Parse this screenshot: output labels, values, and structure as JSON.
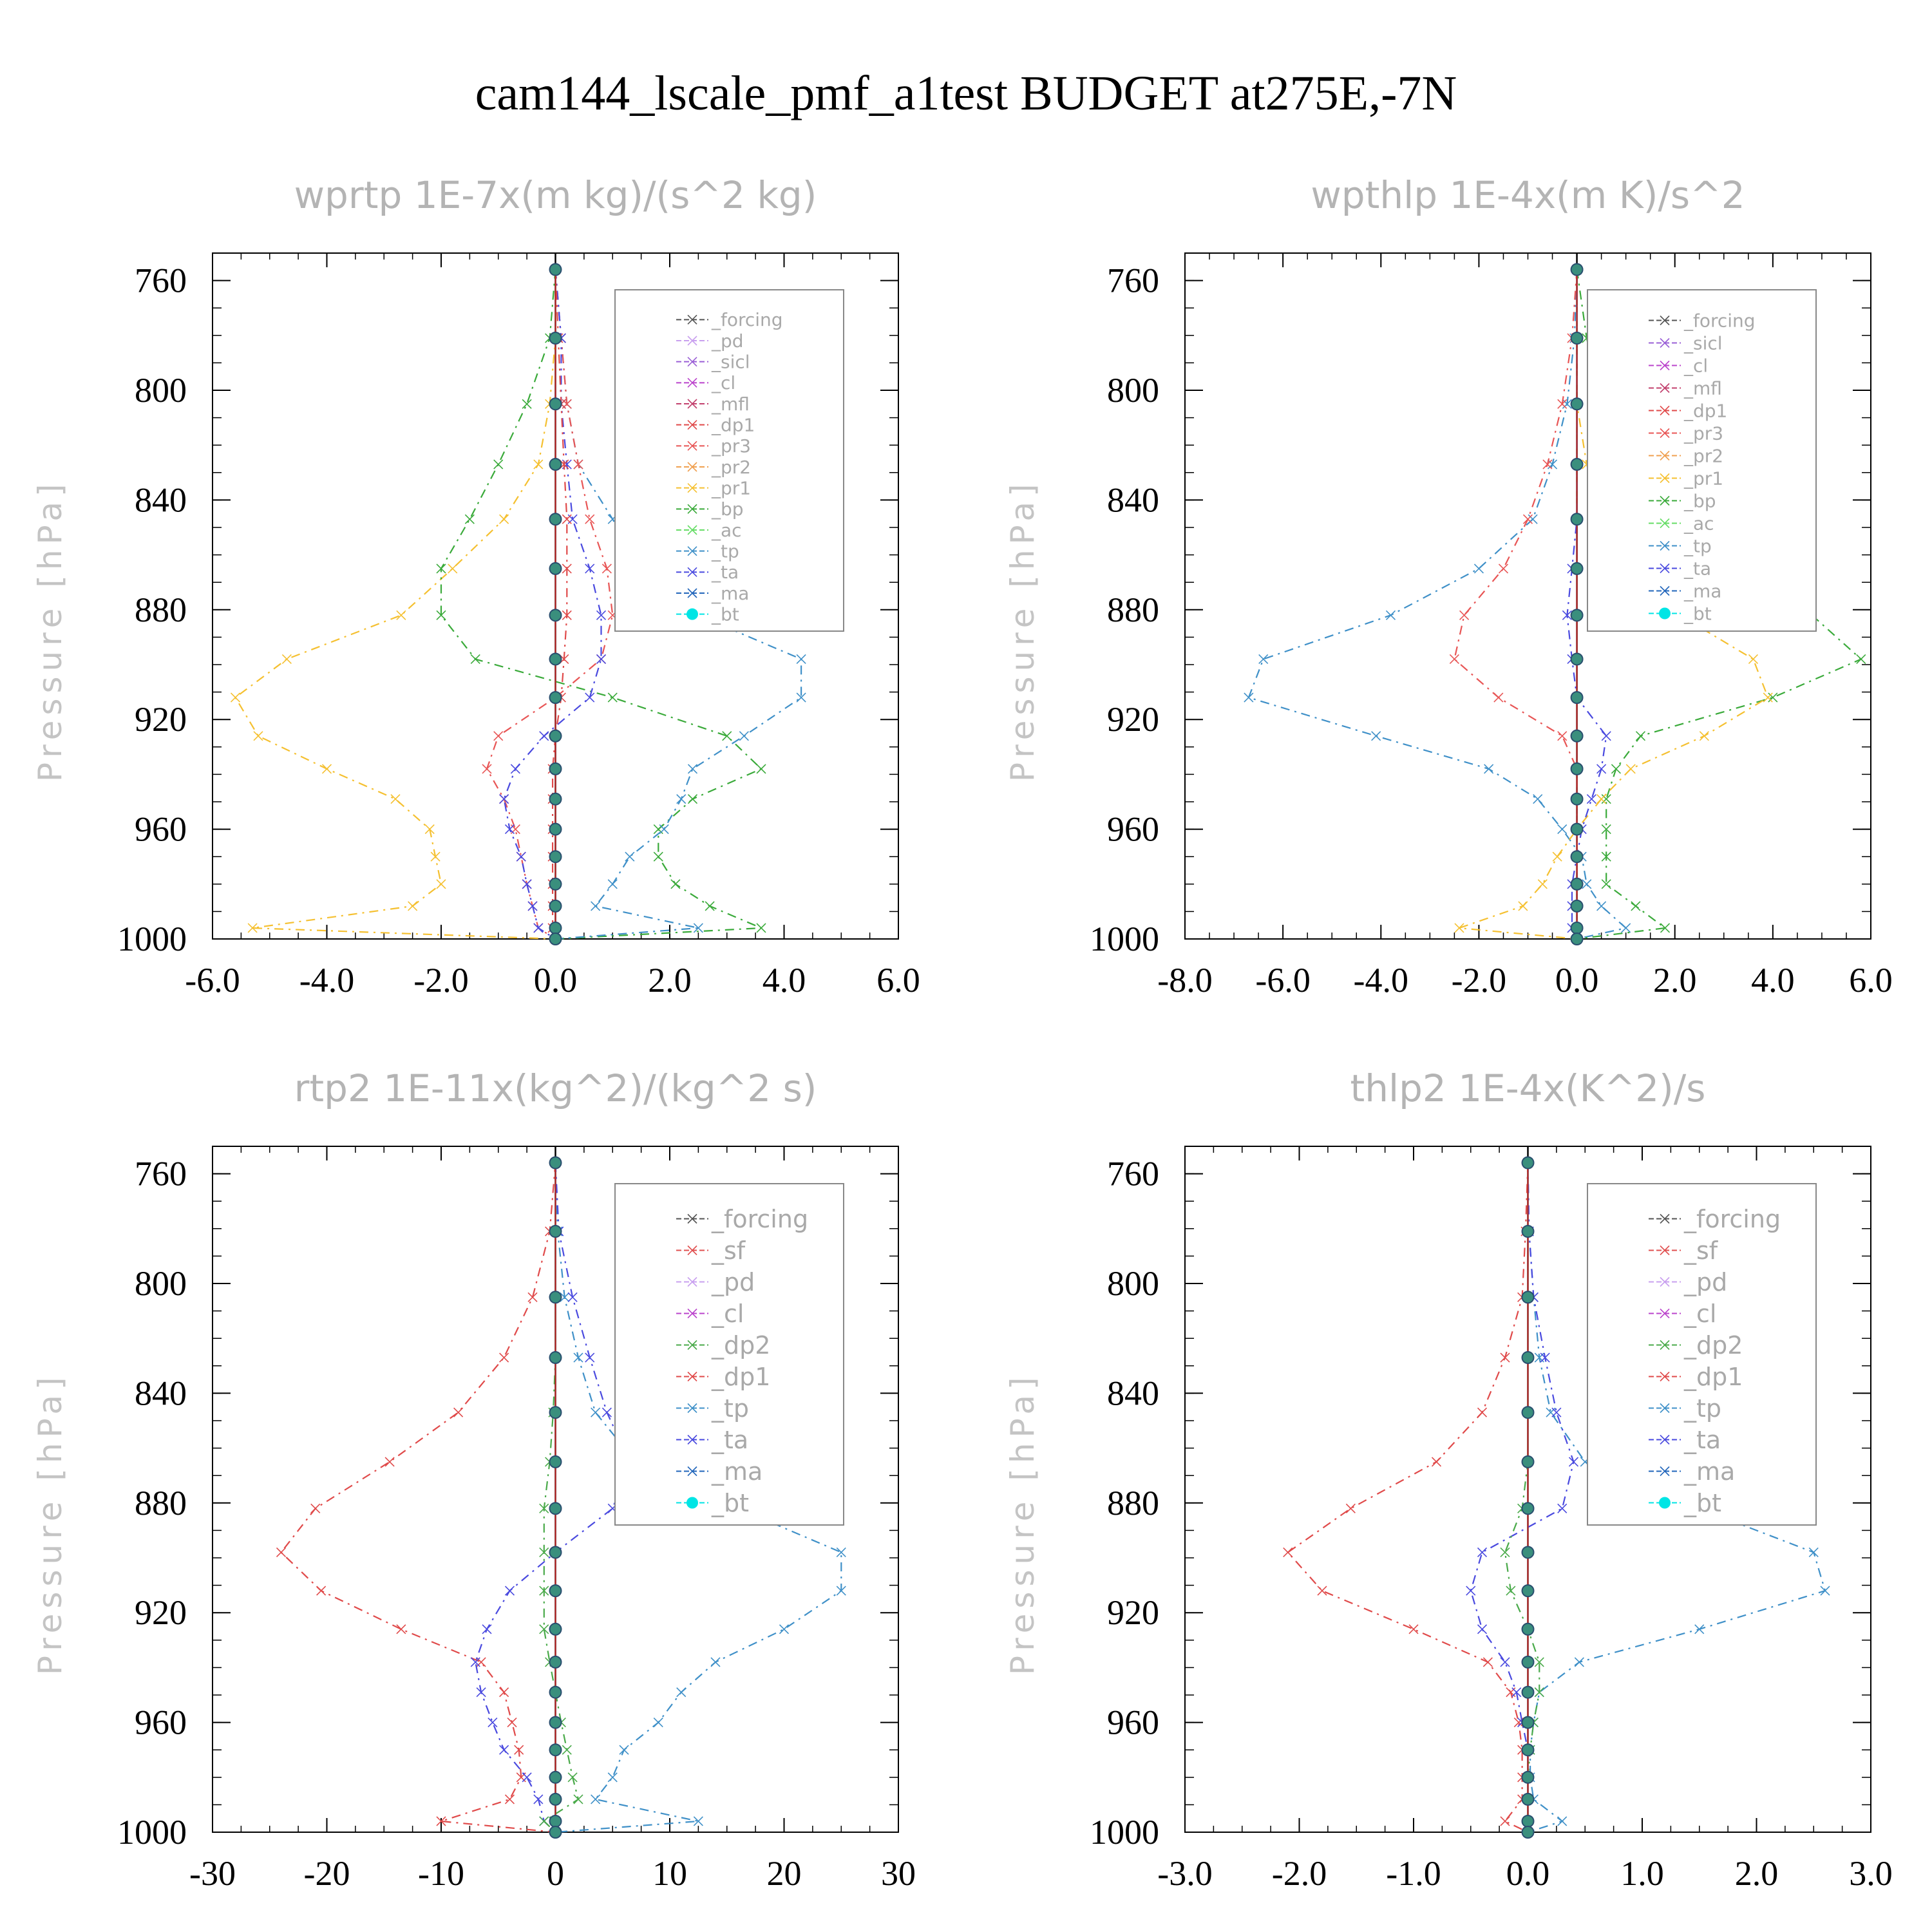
{
  "title": "cam144_lscale_pmf_a1test  BUDGET at275E,-7N",
  "colors": {
    "forcing": "#555555",
    "pd": "#c9a0ef",
    "sicl": "#9a5fd6",
    "cl": "#bb44cc",
    "mfl": "#c2406d",
    "dp1": "#e04a4a",
    "pr3": "#e85555",
    "pr2": "#f0a050",
    "pr1": "#f5c030",
    "bp": "#3aaa3a",
    "ac": "#66dd66",
    "tp": "#3f90c8",
    "ta": "#4a4adf",
    "ma": "#2266bb",
    "bt": "#00e5e5",
    "sf": "#e05050",
    "dp2": "#4aaa4a"
  },
  "chart_data": [
    {
      "type": "line",
      "title": "wprtp  1E-7x(m kg)/(s^2 kg)",
      "ylabel": "Pressure [hPa]",
      "xlim": [
        -6,
        6
      ],
      "xticks": [
        -6,
        -4,
        -2,
        0,
        2,
        4,
        6
      ],
      "xtick_labels": [
        "-6.0",
        "-4.0",
        "-2.0",
        "0.0",
        "2.0",
        "4.0",
        "6.0"
      ],
      "ylim": [
        1000,
        750
      ],
      "yticks": [
        760,
        800,
        840,
        880,
        920,
        960,
        1000
      ],
      "ytick_labels": [
        "760",
        "800",
        "840",
        "880",
        "920",
        "960",
        "1000"
      ],
      "legend": [
        "_forcing",
        "_pd",
        "_sicl",
        "_cl",
        "_mfl",
        "_dp1",
        "_pr3",
        "_pr2",
        "_pr1",
        "_bp",
        "_ac",
        "_tp",
        "_ta",
        "_ma",
        "_bt"
      ],
      "y": [
        756,
        781,
        805,
        827,
        847,
        865,
        882,
        898,
        912,
        926,
        938,
        949,
        960,
        970,
        980,
        988,
        996,
        1000
      ],
      "series": [
        {
          "key": "pr1",
          "values": [
            0,
            0,
            -0.1,
            -0.3,
            -0.9,
            -1.8,
            -2.7,
            -4.7,
            -5.6,
            -5.2,
            -4.0,
            -2.8,
            -2.2,
            -2.1,
            -2.0,
            -2.5,
            -5.3,
            0
          ]
        },
        {
          "key": "bp",
          "values": [
            0,
            -0.1,
            -0.5,
            -1.0,
            -1.5,
            -2.0,
            -2.0,
            -1.4,
            1.0,
            3.0,
            3.6,
            2.4,
            1.8,
            1.8,
            2.1,
            2.7,
            3.6,
            0
          ]
        },
        {
          "key": "tp",
          "values": [
            0,
            0.1,
            0.2,
            0.4,
            1.0,
            1.5,
            2.5,
            4.3,
            4.3,
            3.3,
            2.4,
            2.2,
            1.9,
            1.3,
            1.0,
            0.7,
            2.5,
            0
          ]
        },
        {
          "key": "pr3",
          "values": [
            0,
            0.1,
            0.2,
            0.4,
            0.6,
            0.9,
            1.0,
            0.8,
            0.0,
            -1.0,
            -1.2,
            -0.9,
            -0.7,
            -0.6,
            -0.5,
            -0.4,
            -0.3,
            0
          ]
        },
        {
          "key": "ta",
          "values": [
            0,
            0.1,
            0.1,
            0.2,
            0.3,
            0.6,
            0.8,
            0.8,
            0.6,
            -0.2,
            -0.7,
            -0.9,
            -0.8,
            -0.6,
            -0.5,
            -0.4,
            -0.3,
            0
          ]
        },
        {
          "key": "dp1",
          "values": [
            0,
            0.05,
            0.1,
            0.15,
            0.2,
            0.2,
            0.2,
            0.15,
            0.1,
            0,
            -0.05,
            -0.05,
            -0.05,
            -0.05,
            -0.05,
            -0.05,
            -0.05,
            0
          ]
        },
        {
          "key": "bt",
          "values": [
            0,
            0,
            0,
            0,
            0,
            0,
            0,
            0,
            0,
            0,
            0,
            0,
            0,
            0,
            0,
            0,
            0,
            0
          ]
        }
      ]
    },
    {
      "type": "line",
      "title": "wpthlp  1E-4x(m K)/s^2",
      "ylabel": "Pressure [hPa]",
      "xlim": [
        -8,
        6
      ],
      "xticks": [
        -8,
        -6,
        -4,
        -2,
        0,
        2,
        4,
        6
      ],
      "xtick_labels": [
        "-8.0",
        "-6.0",
        "-4.0",
        "-2.0",
        "0.0",
        "2.0",
        "4.0",
        "6.0"
      ],
      "ylim": [
        1000,
        750
      ],
      "yticks": [
        760,
        800,
        840,
        880,
        920,
        960,
        1000
      ],
      "ytick_labels": [
        "760",
        "800",
        "840",
        "880",
        "920",
        "960",
        "1000"
      ],
      "legend": [
        "_forcing",
        "_sicl",
        "_cl",
        "_mfl",
        "_dp1",
        "_pr3",
        "_pr2",
        "_pr1",
        "_bp",
        "_ac",
        "_tp",
        "_ta",
        "_ma",
        "_bt"
      ],
      "y": [
        756,
        781,
        805,
        827,
        847,
        865,
        882,
        898,
        912,
        926,
        938,
        949,
        960,
        970,
        980,
        988,
        996,
        1000
      ],
      "series": [
        {
          "key": "tp",
          "values": [
            0,
            -0.05,
            -0.2,
            -0.5,
            -0.9,
            -2.0,
            -3.8,
            -6.4,
            -6.7,
            -4.1,
            -1.8,
            -0.8,
            -0.3,
            0.1,
            0.2,
            0.5,
            1.0,
            0
          ]
        },
        {
          "key": "bp",
          "values": [
            0,
            0.2,
            0.5,
            0.9,
            1.8,
            3.2,
            4.8,
            5.8,
            4.0,
            1.3,
            0.8,
            0.6,
            0.6,
            0.6,
            0.6,
            1.2,
            1.8,
            0
          ]
        },
        {
          "key": "pr1",
          "values": [
            0,
            0,
            0,
            0.2,
            0.5,
            1.1,
            2.1,
            3.6,
            3.9,
            2.6,
            1.1,
            0.5,
            0,
            -0.4,
            -0.7,
            -1.1,
            -2.4,
            0
          ]
        },
        {
          "key": "pr3",
          "values": [
            0,
            -0.1,
            -0.3,
            -0.6,
            -1.0,
            -1.5,
            -2.3,
            -2.5,
            -1.6,
            -0.3,
            0,
            0,
            0,
            0,
            0,
            0,
            0,
            0
          ]
        },
        {
          "key": "ta",
          "values": [
            0,
            0,
            0,
            0,
            0,
            -0.1,
            -0.2,
            -0.1,
            0,
            0.6,
            0.5,
            0.3,
            0.1,
            0,
            -0.1,
            -0.1,
            -0.1,
            0
          ]
        },
        {
          "key": "bt",
          "values": [
            0,
            0,
            0,
            0,
            0,
            0,
            0,
            0,
            0,
            0,
            0,
            0,
            0,
            0,
            0,
            0,
            0,
            0
          ]
        }
      ]
    },
    {
      "type": "line",
      "title": "rtp2  1E-11x(kg^2)/(kg^2 s)",
      "ylabel": "Pressure [hPa]",
      "xlim": [
        -30,
        30
      ],
      "xticks": [
        -30,
        -20,
        -10,
        0,
        10,
        20,
        30
      ],
      "xtick_labels": [
        "-30",
        "-20",
        "-10",
        "0",
        "10",
        "20",
        "30"
      ],
      "ylim": [
        1000,
        750
      ],
      "yticks": [
        760,
        800,
        840,
        880,
        920,
        960,
        1000
      ],
      "ytick_labels": [
        "760",
        "800",
        "840",
        "880",
        "920",
        "960",
        "1000"
      ],
      "legend": [
        "_forcing",
        "_sf",
        "_pd",
        "_cl",
        "_dp2",
        "_dp1",
        "_tp",
        "_ta",
        "_ma",
        "_bt"
      ],
      "y": [
        756,
        781,
        805,
        827,
        847,
        865,
        882,
        898,
        912,
        926,
        938,
        949,
        960,
        970,
        980,
        988,
        996,
        1000
      ],
      "series": [
        {
          "key": "dp1",
          "values": [
            0,
            -0.5,
            -2.0,
            -4.5,
            -8.5,
            -14.5,
            -21.0,
            -24.0,
            -20.5,
            -13.5,
            -6.5,
            -4.5,
            -3.8,
            -3.2,
            -3.0,
            -4.0,
            -10.0,
            0
          ]
        },
        {
          "key": "tp",
          "values": [
            0,
            0.2,
            0.8,
            2.0,
            3.5,
            7.0,
            16.0,
            25.0,
            25.0,
            20.0,
            14.0,
            11.0,
            9.0,
            6.0,
            5.0,
            3.5,
            12.5,
            0
          ]
        },
        {
          "key": "ta",
          "values": [
            0,
            0.3,
            1.5,
            3.0,
            4.5,
            6.5,
            5.0,
            0.0,
            -4.0,
            -6.0,
            -7.0,
            -6.5,
            -5.5,
            -4.5,
            -2.5,
            -1.5,
            -1.0,
            0
          ]
        },
        {
          "key": "dp2",
          "values": [
            0,
            0,
            0,
            0,
            -0.2,
            -0.5,
            -1.0,
            -1.0,
            -1.0,
            -1.0,
            -0.5,
            0,
            0.5,
            1.0,
            1.5,
            2.0,
            -1.0,
            0
          ]
        },
        {
          "key": "bt",
          "values": [
            0,
            0,
            0,
            0,
            0,
            0,
            0,
            0,
            0,
            0,
            0,
            0,
            0,
            0,
            0,
            0,
            0,
            0
          ]
        }
      ]
    },
    {
      "type": "line",
      "title": "thlp2  1E-4x(K^2)/s",
      "ylabel": "Pressure [hPa]",
      "xlim": [
        -3,
        3
      ],
      "xticks": [
        -3,
        -2,
        -1,
        0,
        1,
        2,
        3
      ],
      "xtick_labels": [
        "-3.0",
        "-2.0",
        "-1.0",
        "0.0",
        "1.0",
        "2.0",
        "3.0"
      ],
      "ylim": [
        1000,
        750
      ],
      "yticks": [
        760,
        800,
        840,
        880,
        920,
        960,
        1000
      ],
      "ytick_labels": [
        "760",
        "800",
        "840",
        "880",
        "920",
        "960",
        "1000"
      ],
      "legend": [
        "_forcing",
        "_sf",
        "_pd",
        "_cl",
        "_dp2",
        "_dp1",
        "_tp",
        "_ta",
        "_ma",
        "_bt"
      ],
      "y": [
        756,
        781,
        805,
        827,
        847,
        865,
        882,
        898,
        912,
        926,
        938,
        949,
        960,
        970,
        980,
        988,
        996,
        1000
      ],
      "series": [
        {
          "key": "dp1",
          "values": [
            0,
            -0.02,
            -0.05,
            -0.2,
            -0.4,
            -0.8,
            -1.55,
            -2.1,
            -1.8,
            -1.0,
            -0.35,
            -0.15,
            -0.08,
            -0.05,
            -0.05,
            -0.05,
            -0.2,
            0
          ]
        },
        {
          "key": "tp",
          "values": [
            0,
            0.01,
            0.05,
            0.1,
            0.2,
            0.5,
            1.5,
            2.5,
            2.6,
            1.5,
            0.45,
            0.1,
            0.05,
            0.02,
            0.02,
            0.05,
            0.3,
            0
          ]
        },
        {
          "key": "ta",
          "values": [
            0,
            0.01,
            0.05,
            0.15,
            0.25,
            0.4,
            0.3,
            -0.4,
            -0.5,
            -0.4,
            -0.2,
            -0.1,
            -0.05,
            0,
            0,
            0,
            0,
            0
          ]
        },
        {
          "key": "dp2",
          "values": [
            0,
            0,
            0,
            0,
            0,
            0,
            -0.05,
            -0.2,
            -0.15,
            0,
            0.1,
            0.1,
            0.05,
            0.02,
            0,
            0,
            0,
            0
          ]
        },
        {
          "key": "bt",
          "values": [
            0,
            0,
            0,
            0,
            0,
            0,
            0,
            0,
            0,
            0,
            0,
            0,
            0,
            0,
            0,
            0,
            0,
            0
          ]
        }
      ]
    }
  ]
}
